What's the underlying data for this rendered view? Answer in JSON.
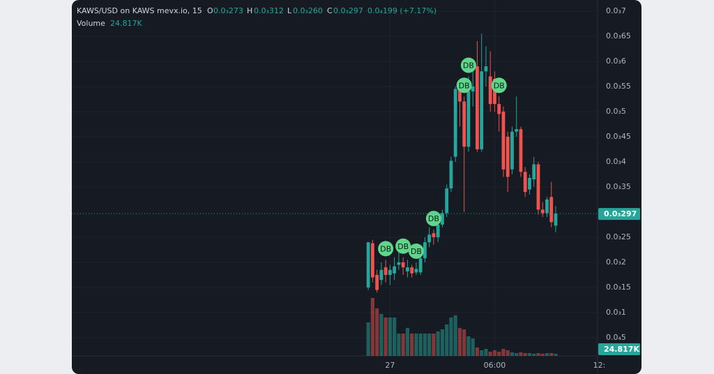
{
  "chart_data": {
    "type": "candlestick",
    "legend": {
      "symbol": "KAWS/USD on KAWS mevx.io, 15",
      "open_label": "O",
      "open": "0.0₃273",
      "high_label": "H",
      "high": "0.0₃312",
      "low_label": "L",
      "low": "0.0₃260",
      "close_label": "C",
      "close": "0.0₃297",
      "change": "0.0₄199 (+7.17%)",
      "volume_title": "Volume",
      "volume": "24.817K"
    },
    "up_color": "#26a69a",
    "down_color": "#ef5350",
    "open": [
      0.00015,
      0.000238,
      0.000175,
      0.000165,
      0.00019,
      0.000175,
      0.000178,
      0.000195,
      0.0002,
      0.000182,
      0.00019,
      0.00018,
      0.00018,
      0.000208,
      0.00024,
      0.000258,
      0.00025,
      0.000275,
      0.000298,
      0.000347,
      0.00041,
      0.000545,
      0.00052,
      0.00043,
      0.00054,
      0.00059,
      0.000425,
      0.00058,
      0.00057,
      0.000565,
      0.000515,
      0.0005,
      0.00045,
      0.000385,
      0.00046,
      0.000465,
      0.00038,
      0.000345,
      0.000365,
      0.000395,
      0.000305,
      0.000298,
      0.00033,
      0.000273
    ],
    "high": [
      0.00024,
      0.000245,
      0.000185,
      0.0002,
      0.000205,
      0.000195,
      0.00021,
      0.00022,
      0.00021,
      0.000205,
      0.000195,
      0.0002,
      0.00021,
      0.00025,
      0.00027,
      0.000265,
      0.00028,
      0.000305,
      0.000355,
      0.00041,
      0.00055,
      0.00056,
      0.00053,
      0.00057,
      0.0006,
      0.00064,
      0.000655,
      0.00063,
      0.00062,
      0.00058,
      0.00053,
      0.00051,
      0.00046,
      0.00047,
      0.00053,
      0.00047,
      0.00039,
      0.000375,
      0.00041,
      0.0004,
      0.00032,
      0.00033,
      0.00036,
      0.000312
    ],
    "low": [
      0.000145,
      0.00016,
      0.00014,
      0.000155,
      0.00016,
      0.000155,
      0.000165,
      0.000185,
      0.000175,
      0.00017,
      0.00017,
      0.000175,
      0.000175,
      0.0002,
      0.00023,
      0.000235,
      0.00024,
      0.00027,
      0.00029,
      0.00034,
      0.0004,
      0.00047,
      0.0003,
      0.00042,
      0.00051,
      0.00042,
      0.00042,
      0.00055,
      0.0005,
      0.0005,
      0.00046,
      0.00037,
      0.00034,
      0.000375,
      0.00045,
      0.00037,
      0.00033,
      0.000335,
      0.00035,
      0.000295,
      0.00029,
      0.00029,
      0.00027,
      0.00026
    ],
    "close": [
      0.00024,
      0.00017,
      0.000145,
      0.000185,
      0.000175,
      0.000185,
      0.000192,
      0.0002,
      0.00019,
      0.00019,
      0.000178,
      0.000187,
      0.000208,
      0.00024,
      0.000255,
      0.00025,
      0.000275,
      0.000298,
      0.000347,
      0.000402,
      0.000545,
      0.00052,
      0.00043,
      0.00054,
      0.00055,
      0.000425,
      0.00058,
      0.00059,
      0.000515,
      0.000515,
      0.000495,
      0.000385,
      0.00037,
      0.00046,
      0.000465,
      0.00038,
      0.00034,
      0.000368,
      0.000395,
      0.000305,
      0.000298,
      0.000325,
      0.00028,
      0.000297
    ],
    "volume": [
      384000,
      664000,
      544000,
      480000,
      440000,
      440000,
      440000,
      256000,
      256000,
      320000,
      256000,
      256000,
      256000,
      256000,
      256000,
      256000,
      280000,
      304000,
      360000,
      440000,
      464000,
      320000,
      304000,
      224000,
      200000,
      96000,
      64000,
      80000,
      48000,
      64000,
      48000,
      80000,
      64000,
      40000,
      32000,
      40000,
      32000,
      32000,
      24000,
      32000,
      24000,
      32000,
      32000,
      24817
    ],
    "markers": [
      {
        "index": 4,
        "label": "DB"
      },
      {
        "index": 8,
        "label": "DB"
      },
      {
        "index": 11,
        "label": "DB"
      },
      {
        "index": 15,
        "label": "DB"
      },
      {
        "index": 22,
        "label": "DB"
      },
      {
        "index": 23,
        "label": "DB"
      },
      {
        "index": 30,
        "label": "DB"
      }
    ],
    "current_price": {
      "value": 0.000297,
      "label": "0.0₃297"
    },
    "xlim": [
      -68,
      52.6
    ],
    "xticks": [
      {
        "value": 5,
        "label": "27"
      },
      {
        "value": 29,
        "label": "06:00"
      },
      {
        "value": 53,
        "label": "12:"
      }
    ],
    "ylim": [
      1.67e-05,
      0.000722
    ],
    "yticks": [
      {
        "value": 0.0007,
        "label": "0.0₃7"
      },
      {
        "value": 0.00065,
        "label": "0.0₃65"
      },
      {
        "value": 0.0006,
        "label": "0.0₃6"
      },
      {
        "value": 0.00055,
        "label": "0.0₃55"
      },
      {
        "value": 0.0005,
        "label": "0.0₃5"
      },
      {
        "value": 0.00045,
        "label": "0.0₃45"
      },
      {
        "value": 0.0004,
        "label": "0.0₃4"
      },
      {
        "value": 0.00035,
        "label": "0.0₃35"
      },
      {
        "value": 0.00025,
        "label": "0.0₃25"
      },
      {
        "value": 0.0002,
        "label": "0.0₃2"
      },
      {
        "value": 0.00015,
        "label": "0.0₃15"
      },
      {
        "value": 0.0001,
        "label": "0.0₃1"
      },
      {
        "value": 5e-05,
        "label": "0.0₄5"
      }
    ],
    "grid": true
  }
}
